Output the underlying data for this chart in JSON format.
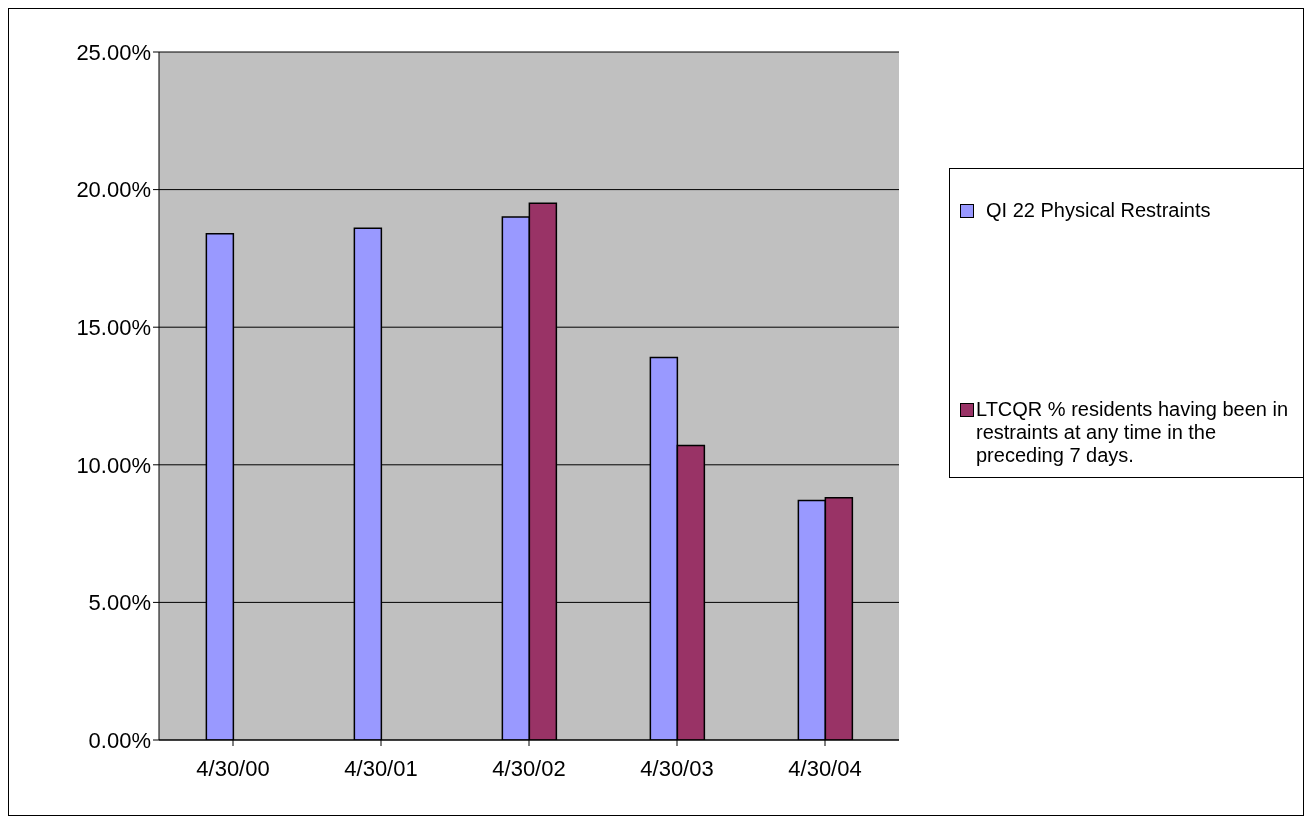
{
  "chart_data": {
    "type": "bar",
    "categories": [
      "4/30/00",
      "4/30/01",
      "4/30/02",
      "4/30/03",
      "4/30/04"
    ],
    "series": [
      {
        "name": "QI 22 Physical Restraints",
        "color": "#9999ff",
        "values": [
          18.4,
          18.6,
          19.0,
          13.9,
          8.7
        ]
      },
      {
        "name": "LTCQR % residents having been in restraints at any time in the preceding 7 days.",
        "color": "#993366",
        "values": [
          null,
          null,
          19.5,
          10.7,
          8.8
        ]
      }
    ],
    "ylim": [
      0,
      25
    ],
    "yticks": [
      {
        "value": 0,
        "label": "0.00%"
      },
      {
        "value": 5,
        "label": "5.00%"
      },
      {
        "value": 10,
        "label": "10.00%"
      },
      {
        "value": 15,
        "label": "15.00%"
      },
      {
        "value": 20,
        "label": "20.00%"
      },
      {
        "value": 25,
        "label": "25.00%"
      }
    ],
    "grid": "y",
    "legend": "right"
  }
}
